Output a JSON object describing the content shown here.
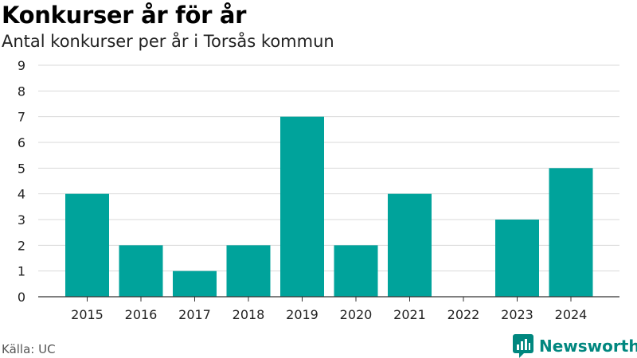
{
  "header": {
    "title": "Konkurser år för år",
    "subtitle": "Antal konkurser per år i Torsås kommun"
  },
  "footer": {
    "source": "Källa: UC",
    "brand": "Newsworthy"
  },
  "colors": {
    "bar": "#00a39b",
    "grid": "#d9d9d9",
    "axis": "#333333",
    "brand": "#00877f"
  },
  "icons": {
    "brand_logo": "newsworthy-logo-icon"
  },
  "chart_data": {
    "type": "bar",
    "title": "Konkurser år för år",
    "subtitle": "Antal konkurser per år i Torsås kommun",
    "categories": [
      "2015",
      "2016",
      "2017",
      "2018",
      "2019",
      "2020",
      "2021",
      "2022",
      "2023",
      "2024"
    ],
    "values": [
      4,
      2,
      1,
      2,
      7,
      2,
      4,
      0,
      3,
      5
    ],
    "xlabel": "",
    "ylabel": "",
    "ylim": [
      0,
      9
    ],
    "yticks": [
      "0",
      "1",
      "2",
      "3",
      "4",
      "5",
      "6",
      "7",
      "8",
      "9"
    ],
    "grid": true,
    "legend": "none"
  }
}
